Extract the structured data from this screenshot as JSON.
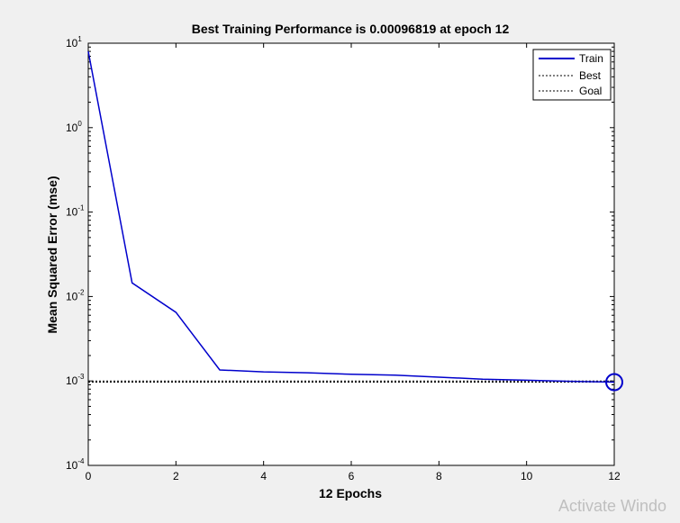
{
  "window": {
    "watermark": "Activate Windo"
  },
  "chart_data": {
    "type": "line",
    "title": "Best Training Performance is 0.00096819 at epoch 12",
    "xlabel": "12 Epochs",
    "ylabel": "Mean Squared Error  (mse)",
    "xlim": [
      0,
      12
    ],
    "ylim": [
      0.0001,
      10
    ],
    "yscale": "log",
    "xticks": [
      0,
      2,
      4,
      6,
      8,
      10,
      12
    ],
    "yticks": [
      {
        "value": 10,
        "base": "10",
        "exp": "1"
      },
      {
        "value": 1,
        "base": "10",
        "exp": "0"
      },
      {
        "value": 0.1,
        "base": "10",
        "exp": "-1"
      },
      {
        "value": 0.01,
        "base": "10",
        "exp": "-2"
      },
      {
        "value": 0.001,
        "base": "10",
        "exp": "-3"
      },
      {
        "value": 0.0001,
        "base": "10",
        "exp": "-4"
      }
    ],
    "grid": false,
    "legend_position": "top-right",
    "series": [
      {
        "name": "Train",
        "color": "#0000cc",
        "style": "solid",
        "x": [
          0,
          1,
          2,
          3,
          4,
          5,
          6,
          7,
          8,
          9,
          10,
          11,
          12
        ],
        "y": [
          8,
          0.0145,
          0.0065,
          0.00135,
          0.00128,
          0.00125,
          0.0012,
          0.00117,
          0.00111,
          0.00105,
          0.00102,
          0.00099,
          0.00096819
        ]
      },
      {
        "name": "Best",
        "color": "#000000",
        "style": "dotted",
        "best_epoch": 12,
        "best_value": 0.00096819
      },
      {
        "name": "Goal",
        "color": "#000000",
        "style": "dotted",
        "value": 0.001
      }
    ],
    "best_marker": {
      "x": 12,
      "y": 0.00096819,
      "color": "#0000cc"
    }
  }
}
